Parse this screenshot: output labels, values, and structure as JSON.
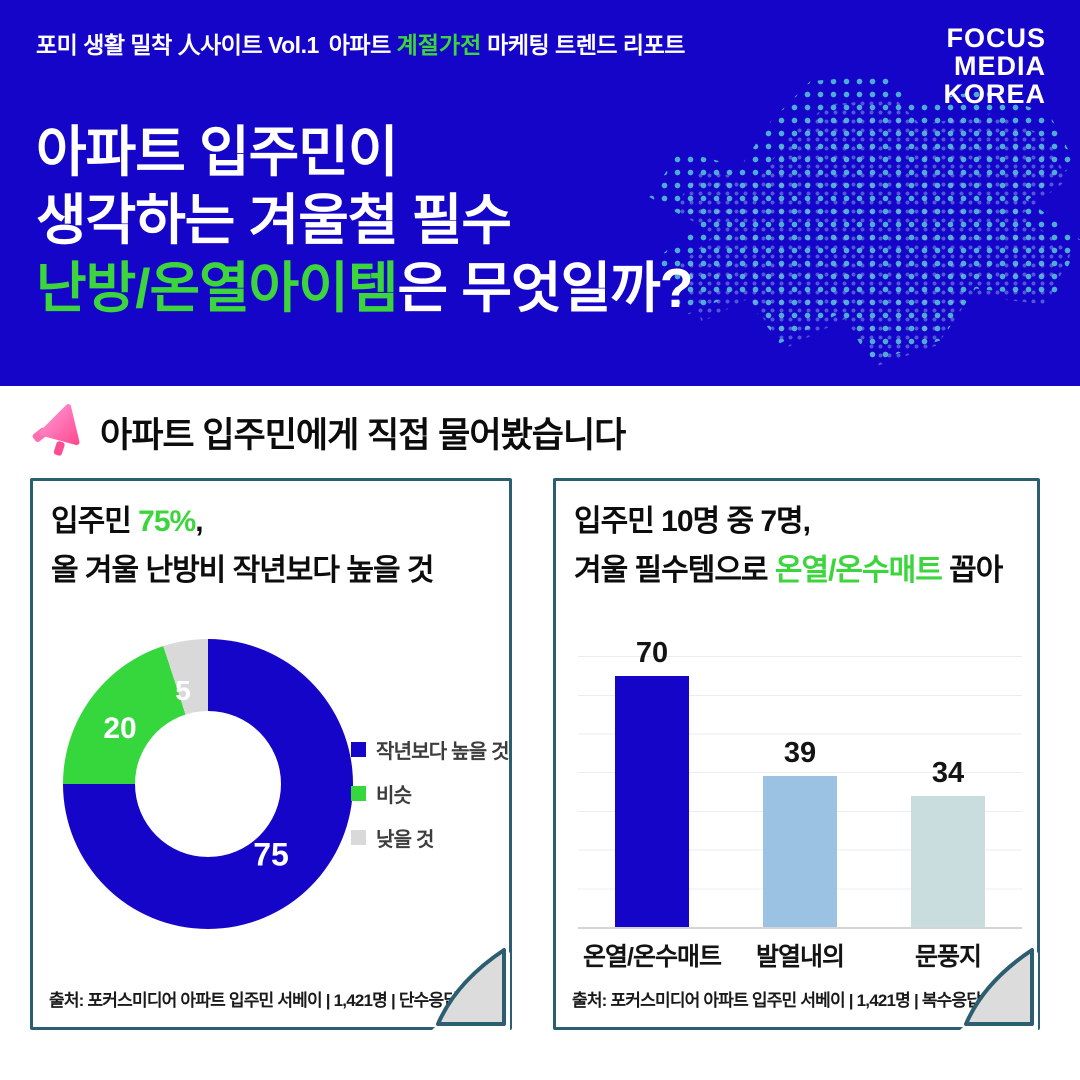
{
  "header": {
    "series_label": "포미 생활 밀착 人사이트 Vol.1",
    "title_part1": "아파트 ",
    "title_green": "계절가전",
    "title_part2": " 마케팅 트렌드 리포트",
    "logo_line1": "FOCUS",
    "logo_line2": "MEDIA",
    "logo_line3": "KOREA"
  },
  "hero": {
    "line1": "아파트 입주민이",
    "line2": "생각하는 겨울철 필수",
    "line3_green": "난방/온열아이템",
    "line3_rest": "은 무엇일까?"
  },
  "section": {
    "heading": "아파트 입주민에게 직접 물어봤습니다"
  },
  "colors": {
    "brand_blue": "#1505C8",
    "accent_green": "#3CD53C",
    "card_border": "#2A5E70",
    "slice_gray": "#D9D9D9",
    "bar_light_blue": "#9BC2E2",
    "bar_pale_blue": "#C9DDDF",
    "map_dot_teal": "#57C9D8"
  },
  "cards": [
    {
      "title_pre": "입주민 ",
      "title_green": "75%",
      "title_post": ",",
      "title_line2": "올 겨울 난방비 작년보다 높을 것",
      "source": "출처: 포커스미디어 아파트 입주민 서베이 | 1,421명 | 단수응답(%)"
    },
    {
      "title_line1": "입주민 10명 중 7명,",
      "title_pre": "겨울 필수템으로 ",
      "title_green": "온열/온수매트",
      "title_post": " 꼽아",
      "source": "출처: 포커스미디어 아파트 입주민 서베이 | 1,421명 | 복수응답(%)"
    }
  ],
  "chart_data": [
    {
      "type": "pie",
      "variant": "donut",
      "title": "입주민 75%, 올 겨울 난방비 작년보다 높을 것",
      "labels": [
        "작년보다 높을 것",
        "비슷",
        "낮을 것"
      ],
      "values": [
        75,
        20,
        5
      ],
      "colors": [
        "#1505C8",
        "#35D73C",
        "#D9D9D9"
      ],
      "legend_position": "right",
      "start_angle_deg": 0,
      "direction": "clockwise"
    },
    {
      "type": "bar",
      "title": "입주민 10명 중 7명, 겨울 필수템으로 온열/온수매트 꼽아",
      "categories": [
        "온열/온수매트",
        "발열내의",
        "문풍지"
      ],
      "values": [
        70,
        39,
        34
      ],
      "colors": [
        "#1505C8",
        "#9BC2E2",
        "#C9DDDF"
      ],
      "ylim": [
        0,
        75
      ],
      "grid": true,
      "legend_position": "none"
    }
  ]
}
